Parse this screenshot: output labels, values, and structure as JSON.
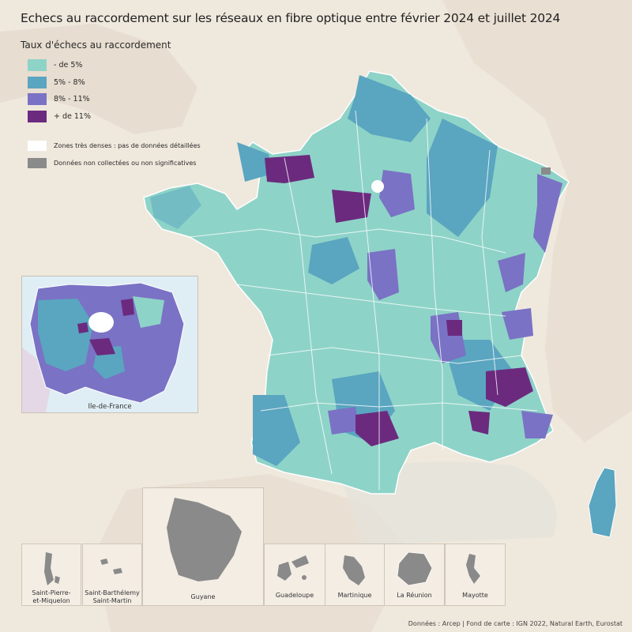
{
  "title": "Echecs au raccordement sur les réseaux en fibre optique entre février 2024 et juillet 2024",
  "legend": {
    "title": "Taux d'échecs au raccordement",
    "classes": [
      {
        "label": "- de 5%",
        "color": "#8ed3c8"
      },
      {
        "label": "5% - 8%",
        "color": "#5aa5c0"
      },
      {
        "label": "8% - 11%",
        "color": "#7a72c4"
      },
      {
        "label": "+ de 11%",
        "color": "#6b2a7e"
      }
    ],
    "extra": [
      {
        "label": "Zones très denses : pas de données détaillées",
        "color": "#ffffff"
      },
      {
        "label": "Données non collectées ou non significatives",
        "color": "#8a8a8a"
      }
    ]
  },
  "idf_inset": {
    "label": "Ile-de-France"
  },
  "overseas": [
    {
      "label_line1": "Saint-Pierre-",
      "label_line2": "et-Miquelon"
    },
    {
      "label_line1": "Saint-Barthélemy",
      "label_line2": "Saint-Martin"
    },
    {
      "label_line1": "Guyane",
      "label_line2": ""
    },
    {
      "label_line1": "Guadeloupe",
      "label_line2": ""
    },
    {
      "label_line1": "Martinique",
      "label_line2": ""
    },
    {
      "label_line1": "La Réunion",
      "label_line2": ""
    },
    {
      "label_line1": "Mayotte",
      "label_line2": ""
    }
  ],
  "source": "Données : Arcep | Fond de carte : IGN 2022, Natural Earth, Eurostat",
  "colors": {
    "background": "#efe8dd",
    "sea": "#e3e4e0",
    "border": "#f2f8f7",
    "no_data": "#8a8a8a"
  }
}
